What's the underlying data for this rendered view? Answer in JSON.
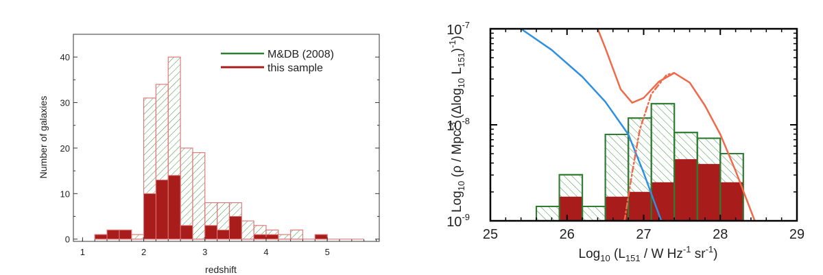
{
  "colors": {
    "md_line": "#2e7d32",
    "md_hatch": "#3a8f3a",
    "sample_fill": "#a81c1c",
    "sample_edge": "#e07a7a",
    "blue_curve": "#2f8fe0",
    "red_curve": "#f06a4a"
  },
  "chart_data": [
    {
      "type": "bar",
      "subtype": "histogram",
      "xlabel": "redshift",
      "ylabel": "Number of galaxies",
      "xlim": [
        0.85,
        5.85
      ],
      "ylim": [
        -0.5,
        45
      ],
      "xticks": [
        1,
        2,
        3,
        4,
        5
      ],
      "xtick_labels": [
        "1",
        "2",
        "3",
        "4",
        "5"
      ],
      "yticks": [
        0,
        10,
        20,
        30,
        40
      ],
      "ytick_labels": [
        "0",
        "10",
        "20",
        "30",
        "40"
      ],
      "bin_width": 0.2,
      "legend_position": "top-right",
      "series": [
        {
          "name": "M&DB (2008)",
          "bin_starts": [
            1.2,
            1.4,
            1.6,
            1.8,
            2.0,
            2.2,
            2.4,
            2.6,
            2.8,
            3.0,
            3.2,
            3.4,
            3.6,
            3.8,
            4.0,
            4.2,
            4.4,
            4.6,
            4.8,
            5.0,
            5.2,
            5.4
          ],
          "values": [
            1,
            2,
            2,
            1,
            31,
            34,
            40,
            20,
            19,
            8,
            8,
            8,
            4,
            3,
            2,
            1,
            2,
            0,
            1,
            0,
            0,
            0
          ]
        },
        {
          "name": "this sample",
          "bin_starts": [
            1.2,
            1.4,
            1.6,
            1.8,
            2.0,
            2.2,
            2.4,
            2.6,
            2.8,
            3.0,
            3.2,
            3.4,
            3.6,
            3.8,
            4.0,
            4.2,
            4.4,
            4.6,
            4.8,
            5.0,
            5.2,
            5.4
          ],
          "values": [
            1,
            2,
            2,
            0,
            10,
            13,
            14,
            3,
            0,
            3,
            2,
            5,
            0,
            1,
            1,
            0,
            0,
            0,
            1,
            0,
            0,
            0
          ]
        }
      ]
    },
    {
      "type": "bar",
      "subtype": "histogram",
      "log_y": true,
      "xlabel_parts": [
        "Log",
        "10",
        " (L",
        "151",
        " / W Hz",
        "-1",
        " sr",
        "-1",
        ")"
      ],
      "ylabel_parts": [
        "Log",
        "10",
        " (ρ / Mpc",
        "-3",
        " (Δlog",
        "10",
        " L",
        "151",
        ")",
        "-1",
        ")"
      ],
      "xlim": [
        25,
        29
      ],
      "ylim_exp": [
        -9,
        -7
      ],
      "xticks": [
        25,
        26,
        27,
        28,
        29
      ],
      "xtick_labels": [
        "25",
        "26",
        "27",
        "28",
        "29"
      ],
      "yticks_exp": [
        -9,
        -8,
        -7
      ],
      "ytick_bases": [
        "10",
        "10",
        "10"
      ],
      "ytick_exps": [
        "-9",
        "-8",
        "-7"
      ],
      "bin_width": 0.3,
      "series": [
        {
          "name_ref": "M&DB (2008)",
          "bin_starts": [
            25.6,
            25.9,
            26.2,
            26.5,
            26.8,
            27.1,
            27.4,
            27.7,
            28.0
          ],
          "log_values": [
            -8.85,
            -8.52,
            -8.85,
            -8.1,
            -7.93,
            -7.78,
            -8.08,
            -8.14,
            -8.3
          ],
          "hatched": true
        },
        {
          "name_ref": "this sample",
          "bin_starts": [
            25.6,
            25.9,
            26.2,
            26.5,
            26.8,
            27.1,
            27.4,
            27.7,
            28.0
          ],
          "log_values": [
            -9.3,
            -8.75,
            -9.3,
            -8.75,
            -8.7,
            -8.6,
            -8.36,
            -8.41,
            -8.6
          ],
          "hatched": false
        }
      ],
      "curves": [
        {
          "color_key": "blue_curve",
          "style": "solid",
          "points": [
            [
              25.4,
              -7.0
            ],
            [
              25.8,
              -7.22
            ],
            [
              26.2,
              -7.5
            ],
            [
              26.5,
              -7.76
            ],
            [
              26.8,
              -8.1
            ],
            [
              27.0,
              -8.5
            ],
            [
              27.23,
              -9.0
            ]
          ]
        },
        {
          "color_key": "red_curve",
          "style": "solid",
          "points": [
            [
              26.3,
              -6.8
            ],
            [
              26.5,
              -7.2
            ],
            [
              26.7,
              -7.63
            ],
            [
              26.85,
              -7.77
            ],
            [
              27.0,
              -7.72
            ],
            [
              27.2,
              -7.55
            ],
            [
              27.4,
              -7.46
            ],
            [
              27.6,
              -7.56
            ],
            [
              27.8,
              -7.8
            ],
            [
              28.0,
              -8.1
            ],
            [
              28.2,
              -8.48
            ],
            [
              28.45,
              -9.0
            ]
          ]
        },
        {
          "color_key": "red_curve",
          "style": "dash-dot",
          "points": [
            [
              26.75,
              -9.0
            ],
            [
              26.85,
              -8.5
            ],
            [
              26.95,
              -8.05
            ],
            [
              27.1,
              -7.68
            ],
            [
              27.3,
              -7.48
            ],
            [
              27.4,
              -7.46
            ]
          ]
        }
      ]
    }
  ]
}
